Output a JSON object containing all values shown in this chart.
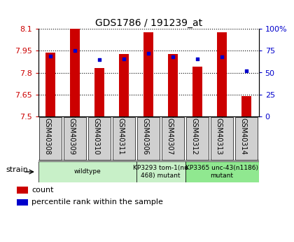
{
  "title": "GDS1786 / 191239_at",
  "samples": [
    "GSM40308",
    "GSM40309",
    "GSM40310",
    "GSM40311",
    "GSM40306",
    "GSM40307",
    "GSM40312",
    "GSM40313",
    "GSM40314"
  ],
  "count_values": [
    7.94,
    8.1,
    7.83,
    7.93,
    8.08,
    7.93,
    7.84,
    8.08,
    7.64
  ],
  "percentile_values": [
    69,
    75,
    65,
    66,
    72,
    68,
    66,
    68,
    52
  ],
  "ylim_left": [
    7.5,
    8.1
  ],
  "ylim_right": [
    0,
    100
  ],
  "yticks_left": [
    7.5,
    7.65,
    7.8,
    7.95,
    8.1
  ],
  "ytick_labels_left": [
    "7.5",
    "7.65",
    "7.8",
    "7.95",
    "8.1"
  ],
  "yticks_right": [
    0,
    25,
    50,
    75,
    100
  ],
  "ytick_labels_right": [
    "0",
    "25",
    "50",
    "75",
    "100%"
  ],
  "bar_color": "#cc0000",
  "dot_color": "#0000cc",
  "bar_width": 0.4,
  "strain_groups": [
    {
      "label": "wildtype",
      "start": 0,
      "end": 4,
      "color": "#c8f0c8"
    },
    {
      "label": "KP3293 tom-1(nu\n468) mutant",
      "start": 4,
      "end": 6,
      "color": "#c8f0c8"
    },
    {
      "label": "KP3365 unc-43(n1186)\nmutant",
      "start": 6,
      "end": 9,
      "color": "#90e890"
    }
  ],
  "strain_label": "strain",
  "legend_count": "count",
  "legend_pct": "percentile rank within the sample",
  "background_color": "#ffffff",
  "tick_bg_color": "#d0d0d0"
}
